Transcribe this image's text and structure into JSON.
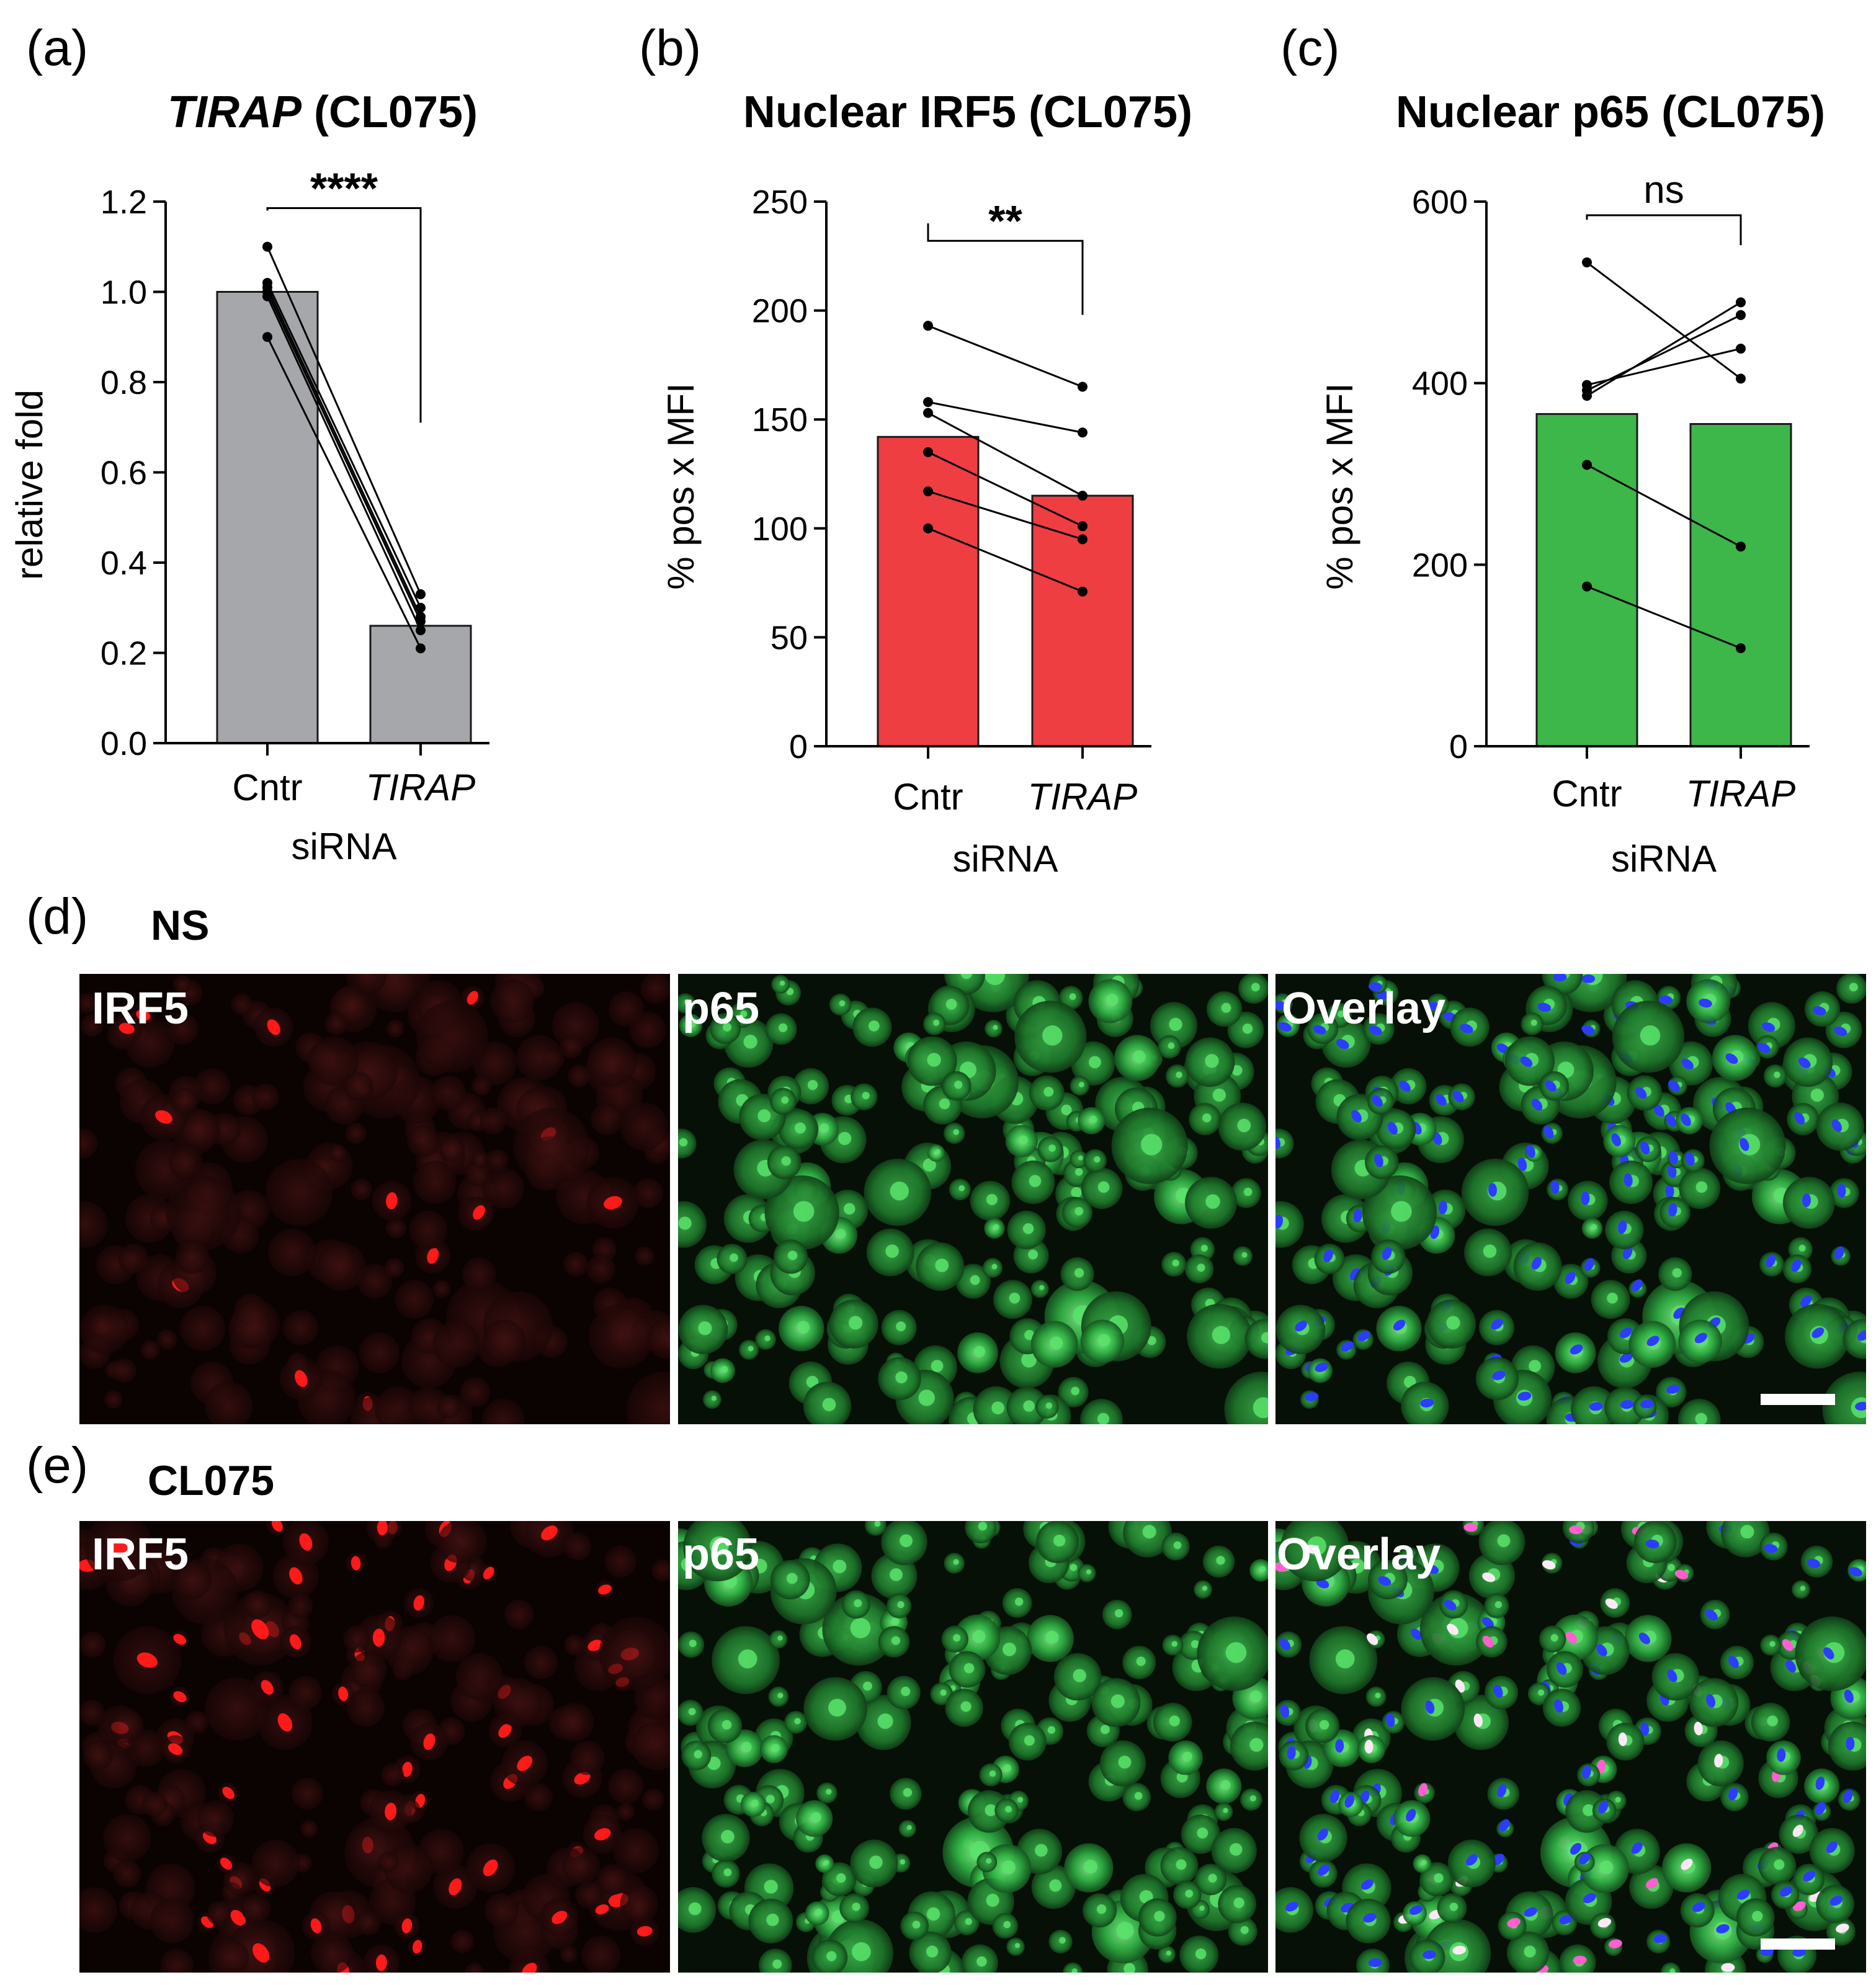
{
  "figure": {
    "panel_letters": [
      "(a)",
      "(b)",
      "(c)",
      "(d)",
      "(e)"
    ],
    "conditions": {
      "d": "NS",
      "e": "CL075"
    },
    "channels": [
      "IRF5",
      "p65",
      "Overlay"
    ],
    "colors": {
      "gray_bar": "#a6a7aa",
      "red_bar": "#ee3e42",
      "green_bar": "#3db64a",
      "irf5_channel": "#ff1a1a",
      "p65_channel": "#2fd24a",
      "dapi_channel": "#2b3cff",
      "pink_overlap": "#ff5fd0"
    }
  },
  "chart_data": [
    {
      "type": "bar",
      "panel": "(a)",
      "title_italic": "TIRAP",
      "title_rest": " (CL075)",
      "categories": [
        "Cntr",
        "TIRAP"
      ],
      "category_italic": [
        false,
        true
      ],
      "values": [
        1.0,
        0.26
      ],
      "xlabel": "siRNA",
      "ylabel": "relative fold",
      "ylim": [
        0,
        1.2
      ],
      "yticks": [
        0.0,
        0.2,
        0.4,
        0.6,
        0.8,
        1.0,
        1.2
      ],
      "ytick_labels": [
        "0.0",
        "0.2",
        "0.4",
        "0.6",
        "0.8",
        "1.0",
        "1.2"
      ],
      "color": "#a6a7aa",
      "paired_points": [
        [
          1.1,
          0.33
        ],
        [
          1.02,
          0.3
        ],
        [
          1.01,
          0.28
        ],
        [
          1.0,
          0.27
        ],
        [
          0.99,
          0.25
        ],
        [
          0.9,
          0.21
        ]
      ],
      "significance": "****",
      "bracket_left_end": 1.18,
      "bracket_right_end": 0.71
    },
    {
      "type": "bar",
      "panel": "(b)",
      "title_italic": "",
      "title_rest": "Nuclear IRF5 (CL075)",
      "categories": [
        "Cntr",
        "TIRAP"
      ],
      "category_italic": [
        false,
        true
      ],
      "values": [
        142,
        115
      ],
      "xlabel": "siRNA",
      "ylabel": "% pos x MFI",
      "ylim": [
        0,
        250
      ],
      "yticks": [
        0,
        50,
        100,
        150,
        200,
        250
      ],
      "ytick_labels": [
        "0",
        "50",
        "100",
        "150",
        "200",
        "250"
      ],
      "color": "#ee3e42",
      "paired_points": [
        [
          193,
          165
        ],
        [
          158,
          144
        ],
        [
          153,
          115
        ],
        [
          135,
          101
        ],
        [
          117,
          95
        ],
        [
          100,
          71
        ]
      ],
      "significance": "**",
      "bracket_left_end": 240,
      "bracket_right_end": 198
    },
    {
      "type": "bar",
      "panel": "(c)",
      "title_italic": "",
      "title_rest": "Nuclear p65 (CL075)",
      "categories": [
        "Cntr",
        "TIRAP"
      ],
      "category_italic": [
        false,
        true
      ],
      "values": [
        366,
        355
      ],
      "xlabel": "siRNA",
      "ylabel": "% pos x MFI",
      "ylim": [
        0,
        600
      ],
      "yticks": [
        0,
        200,
        400,
        600
      ],
      "ytick_labels": [
        "0",
        "200",
        "400",
        "600"
      ],
      "color": "#3db64a",
      "paired_points": [
        [
          533,
          405
        ],
        [
          398,
          438
        ],
        [
          392,
          475
        ],
        [
          386,
          489
        ],
        [
          310,
          220
        ],
        [
          176,
          108
        ]
      ],
      "significance": "ns",
      "bracket_left_end": 580,
      "bracket_right_end": 552
    }
  ]
}
